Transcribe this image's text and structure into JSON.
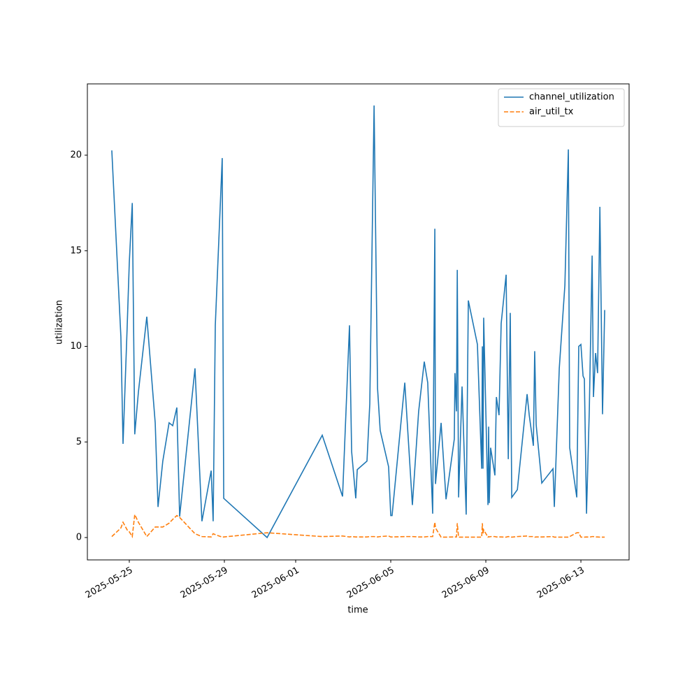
{
  "chart_data": {
    "type": "line",
    "xlabel": "time",
    "ylabel": "utilization",
    "x": [
      "2025-05-24T06:20",
      "2025-05-24T15:30",
      "2025-05-24T17:40",
      "2025-05-24T21:50",
      "2025-05-25T00:00",
      "2025-05-25T03:00",
      "2025-05-25T05:30",
      "2025-05-25T09:10",
      "2025-05-25T17:40",
      "2025-05-26T02:10",
      "2025-05-26T05:00",
      "2025-05-26T09:50",
      "2025-05-26T16:10",
      "2025-05-26T19:50",
      "2025-05-27T00:00",
      "2025-05-27T02:50",
      "2025-05-27T18:20",
      "2025-05-28T01:20",
      "2025-05-28T10:40",
      "2025-05-28T12:40",
      "2025-05-28T14:50",
      "2025-05-28T21:50",
      "2025-05-28T23:20",
      "2025-05-30T19:10",
      "2025-06-02T02:50",
      "2025-06-02T23:20",
      "2025-06-03T06:20",
      "2025-06-03T08:30",
      "2025-06-03T12:40",
      "2025-06-03T14:10",
      "2025-06-04T00:00",
      "2025-06-04T02:50",
      "2025-06-04T07:10",
      "2025-06-04T10:40",
      "2025-06-04T13:20",
      "2025-06-04T21:50",
      "2025-06-05T00:00",
      "2025-06-05T01:20",
      "2025-06-05T14:10",
      "2025-06-05T21:50",
      "2025-06-06T04:10",
      "2025-06-06T09:50",
      "2025-06-06T13:20",
      "2025-06-06T18:20",
      "2025-06-06T20:30",
      "2025-06-06T21:10",
      "2025-06-07T02:50",
      "2025-06-07T07:50",
      "2025-06-07T16:10",
      "2025-06-07T16:50",
      "2025-06-07T18:20",
      "2025-06-07T19:10",
      "2025-06-07T20:30",
      "2025-06-08T00:00",
      "2025-06-08T04:10",
      "2025-06-08T06:20",
      "2025-06-08T15:30",
      "2025-06-08T19:50",
      "2025-06-08T20:30",
      "2025-06-08T21:10",
      "2025-06-08T21:50",
      "2025-06-09T02:10",
      "2025-06-09T02:50",
      "2025-06-09T03:30",
      "2025-06-09T04:50",
      "2025-06-09T09:10",
      "2025-06-09T10:40",
      "2025-06-09T13:20",
      "2025-06-09T15:30",
      "2025-06-09T20:30",
      "2025-06-09T22:40",
      "2025-06-10T00:40",
      "2025-06-10T02:10",
      "2025-06-10T07:50",
      "2025-06-10T17:40",
      "2025-06-10T19:50",
      "2025-06-11T00:00",
      "2025-06-11T01:20",
      "2025-06-11T02:50",
      "2025-06-11T08:30",
      "2025-06-11T19:50",
      "2025-06-11T21:10",
      "2025-06-12T02:10",
      "2025-06-12T07:50",
      "2025-06-12T11:20",
      "2025-06-12T12:40",
      "2025-06-12T19:50",
      "2025-06-12T21:50",
      "2025-06-13T00:00",
      "2025-06-13T02:10",
      "2025-06-13T03:30",
      "2025-06-13T05:40",
      "2025-06-13T08:30",
      "2025-06-13T11:20",
      "2025-06-13T12:40",
      "2025-06-13T14:50",
      "2025-06-13T16:50",
      "2025-06-13T19:10",
      "2025-06-13T21:50",
      "2025-06-14T00:00"
    ],
    "series": [
      {
        "name": "channel_utilization",
        "color": "#1f77b4",
        "dash": "solid",
        "values": [
          20.25,
          10.5,
          4.9,
          11,
          14.4,
          17.5,
          5.4,
          7.6,
          11.55,
          6,
          1.6,
          4,
          6,
          5.85,
          6.8,
          1.1,
          8.85,
          0.85,
          3.5,
          0.85,
          11.1,
          19.85,
          2.05,
          0,
          5.35,
          2.15,
          11.1,
          4.5,
          2.05,
          3.55,
          4,
          7,
          22.6,
          7.8,
          5.6,
          3.7,
          1.15,
          1.15,
          8.1,
          1.7,
          6.6,
          9.2,
          8.1,
          1.25,
          16.15,
          2.8,
          6,
          2,
          5.15,
          8.6,
          6.6,
          14,
          2.1,
          7.9,
          1.2,
          12.4,
          10.1,
          3.6,
          10,
          3.6,
          11.5,
          1.7,
          5.8,
          1.8,
          4.7,
          3.25,
          7.35,
          6.4,
          11.2,
          13.75,
          4.1,
          11.75,
          2.1,
          2.5,
          7.5,
          6.4,
          4.8,
          9.75,
          5.9,
          2.85,
          3.6,
          1.6,
          8.85,
          13.2,
          20.3,
          4.7,
          2.1,
          10,
          10.1,
          8.45,
          8.3,
          1.25,
          6.7,
          14.75,
          7.35,
          9.65,
          8.6,
          17.3,
          6.45,
          11.9
        ]
      },
      {
        "name": "air_util_tx",
        "color": "#ff7f0e",
        "dash": "dashed",
        "values": [
          0.05,
          0.5,
          0.8,
          0.4,
          0.3,
          0.05,
          1.2,
          0.8,
          0.05,
          0.55,
          0.55,
          0.55,
          0.75,
          0.95,
          1.15,
          1.05,
          0.2,
          0.05,
          0.03,
          0.2,
          0.15,
          0.02,
          0.03,
          0.25,
          0.05,
          0.08,
          0.03,
          0.05,
          0.03,
          0.03,
          0.03,
          0.05,
          0.05,
          0.03,
          0.05,
          0.08,
          0.03,
          0.03,
          0.05,
          0.05,
          0.03,
          0.03,
          0.05,
          0.05,
          0.8,
          0.5,
          0.02,
          0.02,
          0.03,
          0.03,
          0.03,
          0.75,
          0.02,
          0.02,
          0.02,
          0.02,
          0.02,
          0.02,
          0.75,
          0.2,
          0.4,
          0.02,
          0.05,
          0.03,
          0.05,
          0.05,
          0.03,
          0.03,
          0.03,
          0.02,
          0.05,
          0.03,
          0.02,
          0.05,
          0.08,
          0.05,
          0.05,
          0.02,
          0.03,
          0.03,
          0.05,
          0.02,
          0.02,
          0.02,
          0.02,
          0.05,
          0.25,
          0.25,
          0.02,
          0.02,
          0.02,
          0.03,
          0.02,
          0.05,
          0.05,
          0.03,
          0.03,
          0.02,
          0.02,
          0.02
        ]
      }
    ],
    "xlim": [
      "2025-05-23T05:40",
      "2025-06-15T00:40"
    ],
    "xticks": [
      "2025-05-25",
      "2025-05-29",
      "2025-06-01",
      "2025-06-05",
      "2025-06-09",
      "2025-06-13"
    ],
    "ylim": [
      -1.17,
      23.73
    ],
    "yticks": [
      0,
      5,
      10,
      15,
      20
    ],
    "grid": false,
    "legend": "upper right"
  }
}
